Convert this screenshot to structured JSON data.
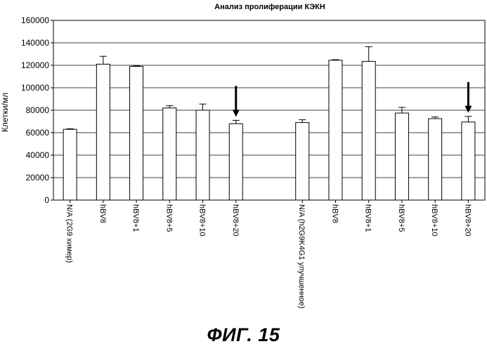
{
  "figure_caption": "ФИГ. 15",
  "chart_data": {
    "type": "bar",
    "title": "Анализ пролиферации КЭКН",
    "ylabel": "Клетки/мл",
    "xlabel": "",
    "ylim": [
      0,
      160000
    ],
    "yticks": [
      0,
      20000,
      40000,
      60000,
      80000,
      100000,
      120000,
      140000,
      160000
    ],
    "grid": true,
    "bars": [
      {
        "label": "N/A (2G9 химер)",
        "value": 63000,
        "error": 500,
        "arrow": false
      },
      {
        "label": "hBV8",
        "value": 121000,
        "error": 7000,
        "arrow": false
      },
      {
        "label": "hBV8+1",
        "value": 119000,
        "error": 500,
        "arrow": false
      },
      {
        "label": "hBV8+5",
        "value": 82000,
        "error": 2000,
        "arrow": false
      },
      {
        "label": "hBV8+10",
        "value": 80000,
        "error": 5500,
        "arrow": false
      },
      {
        "label": "hBV8+20",
        "value": 68000,
        "error": 3000,
        "arrow": true
      },
      {
        "label": "N/A (h2G9K4G1 улучшенное)",
        "value": 69000,
        "error": 2500,
        "arrow": false
      },
      {
        "label": "hBV8",
        "value": 124500,
        "error": 500,
        "arrow": false
      },
      {
        "label": "hBV8+1",
        "value": 123500,
        "error": 13000,
        "arrow": false
      },
      {
        "label": "hBV8+5",
        "value": 77500,
        "error": 5000,
        "arrow": false
      },
      {
        "label": "hBV8+10",
        "value": 72500,
        "error": 1500,
        "arrow": false
      },
      {
        "label": "hBV8+20",
        "value": 69500,
        "error": 5000,
        "arrow": true
      }
    ]
  }
}
